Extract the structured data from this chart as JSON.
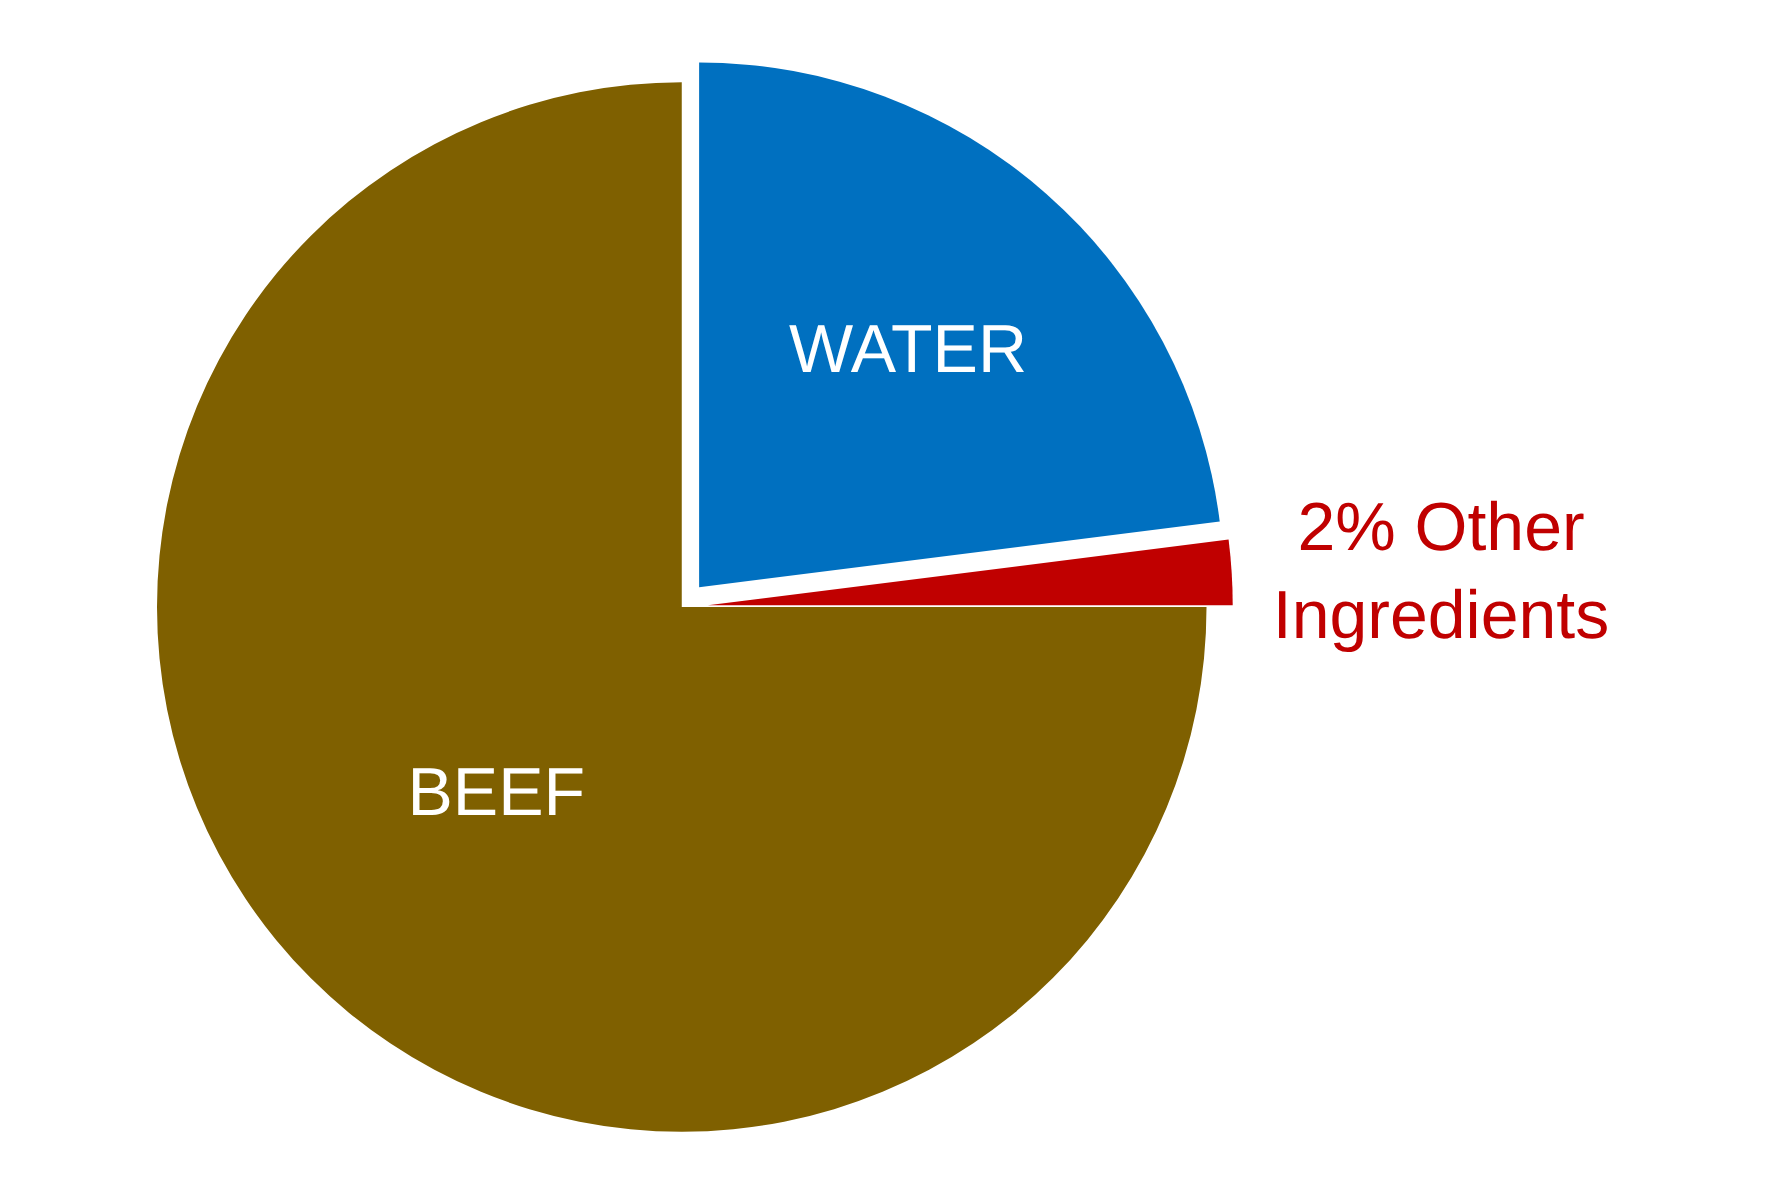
{
  "chart_data": {
    "type": "pie",
    "categories": [
      "WATER",
      "2% Other Ingredients",
      "BEEF"
    ],
    "values": [
      23,
      2,
      75
    ],
    "colors": [
      "#0070c0",
      "#c00000",
      "#7f6000"
    ],
    "legend": false
  }
}
